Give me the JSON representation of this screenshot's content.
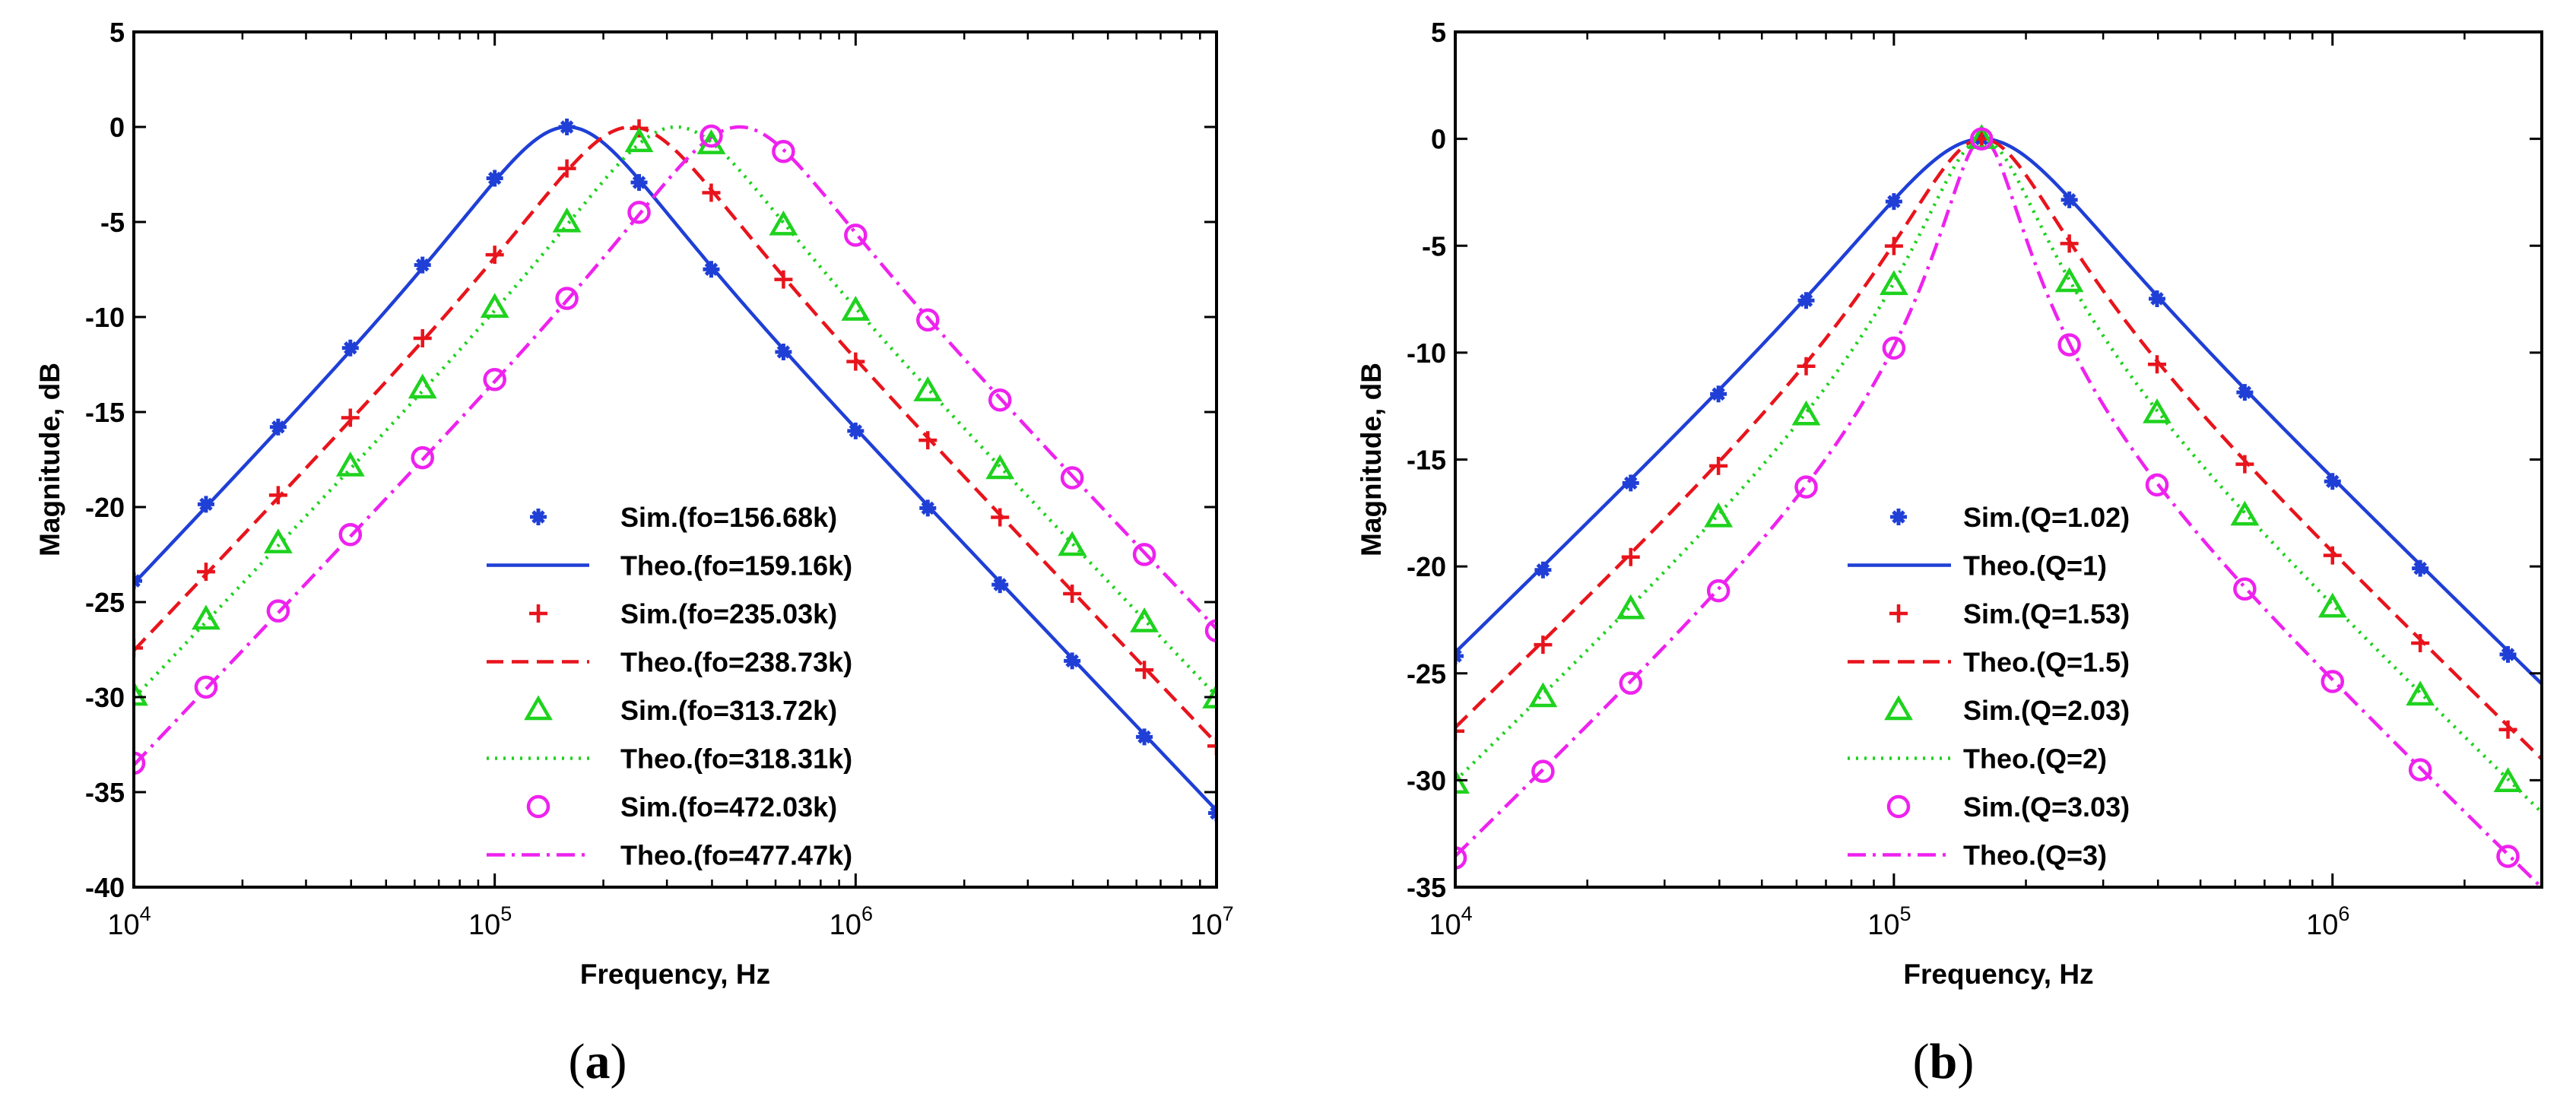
{
  "chart_data": [
    {
      "type": "line",
      "panel_label": "(a)",
      "xlabel": "Frequency, Hz",
      "ylabel": "Magnitude, dB",
      "xscale": "log",
      "xlim": [
        10000,
        10000000
      ],
      "ylim": [
        -40,
        5
      ],
      "xticks": [
        10000,
        100000,
        1000000,
        10000000
      ],
      "yticks": [
        5,
        0,
        -5,
        -10,
        -15,
        -20,
        -25,
        -30,
        -35,
        -40
      ],
      "xtick_labels": [
        {
          "base": "10",
          "exp": "4"
        },
        {
          "base": "10",
          "exp": "5"
        },
        {
          "base": "10",
          "exp": "6"
        },
        {
          "base": "10",
          "exp": "7"
        }
      ],
      "ytick_labels": [
        "5",
        "0",
        "-5",
        "-10",
        "-15",
        "-20",
        "-25",
        "-30",
        "-35",
        "-40"
      ],
      "grid": false,
      "legend_position": "bottom-center",
      "series": [
        {
          "name": "Sim.(fo=156.68k)",
          "kind": "markers",
          "marker": "star",
          "color": "#1f3fd6",
          "f0": 156680,
          "Q": 1
        },
        {
          "name": "Theo.(fo=159.16k)",
          "kind": "line",
          "dash": "solid",
          "color": "#1f3fd6",
          "f0": 159160,
          "Q": 1
        },
        {
          "name": "Sim.(fo=235.03k)",
          "kind": "markers",
          "marker": "plus",
          "color": "#e8141c",
          "f0": 235030,
          "Q": 1
        },
        {
          "name": "Theo.(fo=238.73k)",
          "kind": "line",
          "dash": "dashed",
          "color": "#e8141c",
          "f0": 238730,
          "Q": 1
        },
        {
          "name": "Sim.(fo=313.72k)",
          "kind": "markers",
          "marker": "triangle",
          "color": "#1ed21e",
          "f0": 313720,
          "Q": 1
        },
        {
          "name": "Theo.(fo=318.31k)",
          "kind": "line",
          "dash": "dotted",
          "color": "#1ed21e",
          "f0": 318310,
          "Q": 1
        },
        {
          "name": "Sim.(fo=472.03k)",
          "kind": "markers",
          "marker": "circle",
          "color": "#ee22ee",
          "f0": 472030,
          "Q": 1
        },
        {
          "name": "Theo.(fo=477.47k)",
          "kind": "line",
          "dash": "dashdot",
          "color": "#ee22ee",
          "f0": 477470,
          "Q": 1
        }
      ]
    },
    {
      "type": "line",
      "panel_label": "(b)",
      "xlabel": "Frequency, Hz",
      "ylabel": "Magnitude, dB",
      "xscale": "log",
      "xlim": [
        10000,
        3000000
      ],
      "ylim": [
        -35,
        5
      ],
      "xticks": [
        10000,
        100000,
        1000000
      ],
      "yticks": [
        5,
        0,
        -5,
        -10,
        -15,
        -20,
        -25,
        -30,
        -35
      ],
      "xtick_labels": [
        {
          "base": "10",
          "exp": "4"
        },
        {
          "base": "10",
          "exp": "5"
        },
        {
          "base": "10",
          "exp": "6"
        }
      ],
      "ytick_labels": [
        "5",
        "0",
        "-5",
        "-10",
        "-15",
        "-20",
        "-25",
        "-30",
        "-35"
      ],
      "grid": false,
      "legend_position": "bottom-center",
      "series": [
        {
          "name": "Sim.(Q=1.02)",
          "kind": "markers",
          "marker": "star",
          "color": "#1f3fd6",
          "f0": 159160,
          "Q": 1.02
        },
        {
          "name": "Theo.(Q=1)",
          "kind": "line",
          "dash": "solid",
          "color": "#1f3fd6",
          "f0": 159160,
          "Q": 1
        },
        {
          "name": "Sim.(Q=1.53)",
          "kind": "markers",
          "marker": "plus",
          "color": "#e8141c",
          "f0": 159160,
          "Q": 1.53
        },
        {
          "name": "Theo.(Q=1.5)",
          "kind": "line",
          "dash": "dashed",
          "color": "#e8141c",
          "f0": 159160,
          "Q": 1.5
        },
        {
          "name": "Sim.(Q=2.03)",
          "kind": "markers",
          "marker": "triangle",
          "color": "#1ed21e",
          "f0": 159160,
          "Q": 2.03
        },
        {
          "name": "Theo.(Q=2)",
          "kind": "line",
          "dash": "dotted",
          "color": "#1ed21e",
          "f0": 159160,
          "Q": 2
        },
        {
          "name": "Sim.(Q=3.03)",
          "kind": "markers",
          "marker": "circle",
          "color": "#ee22ee",
          "f0": 159160,
          "Q": 3.03
        },
        {
          "name": "Theo.(Q=3)",
          "kind": "line",
          "dash": "dashdot",
          "color": "#ee22ee",
          "f0": 159160,
          "Q": 3
        }
      ]
    }
  ]
}
